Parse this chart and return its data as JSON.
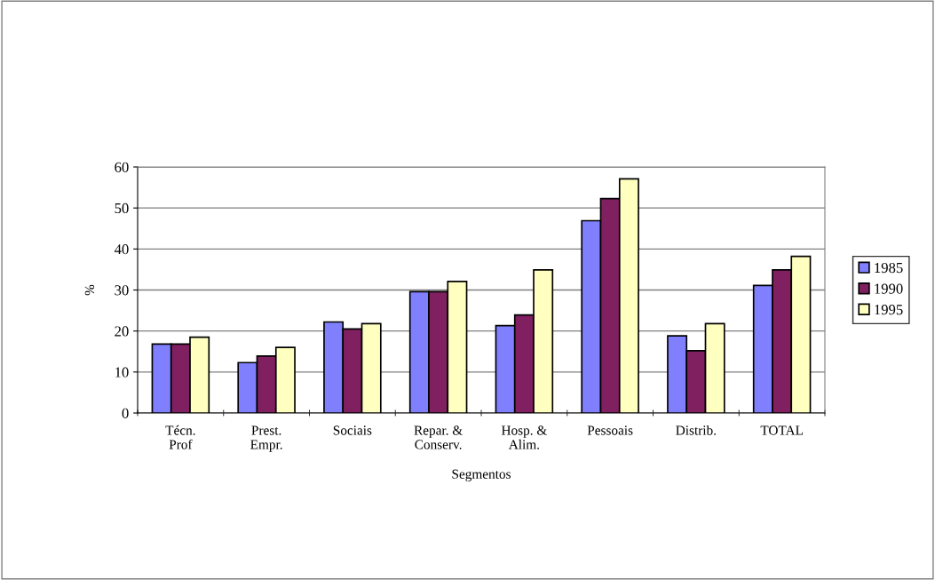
{
  "chart_data": {
    "type": "bar",
    "xlabel": "Segmentos",
    "ylabel": "%",
    "categories": [
      "Técn.\nProf",
      "Prest.\nEmpr.",
      "Sociais",
      "Repar. &\nConserv.",
      "Hosp. &\nAlim.",
      "Pessoais",
      "Distrib.",
      "TOTAL"
    ],
    "series": [
      {
        "name": "1985",
        "color": "#8080ff",
        "values": [
          16.8,
          12.3,
          22.2,
          29.6,
          21.3,
          46.9,
          18.8,
          31.1
        ]
      },
      {
        "name": "1990",
        "color": "#802060",
        "values": [
          16.8,
          13.9,
          20.5,
          29.6,
          23.9,
          52.3,
          15.2,
          34.9
        ]
      },
      {
        "name": "1995",
        "color": "#ffffc0",
        "values": [
          18.5,
          16.0,
          21.8,
          32.1,
          34.9,
          57.1,
          21.8,
          38.2
        ]
      }
    ],
    "ylim": [
      0,
      60
    ],
    "yticks": [
      0,
      10,
      20,
      30,
      40,
      50,
      60
    ],
    "grid": "y",
    "legend": "right"
  }
}
